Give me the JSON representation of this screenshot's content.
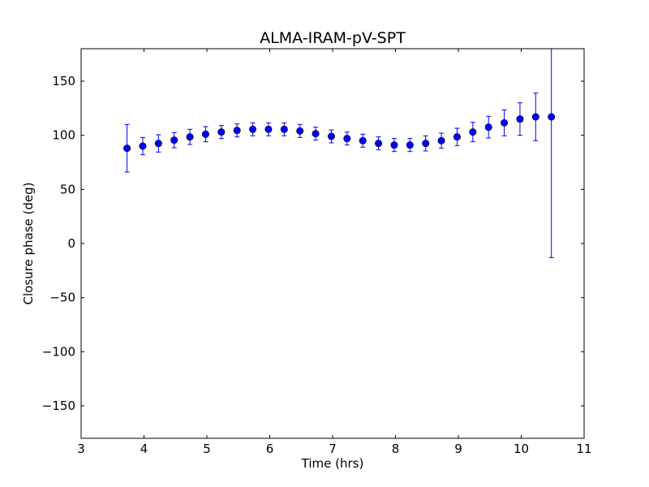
{
  "chart_data": {
    "type": "scatter",
    "title": "ALMA-IRAM-pV-SPT",
    "xlabel": "Time (hrs)",
    "ylabel": "Closure phase (deg)",
    "xlim": [
      3,
      11
    ],
    "ylim": [
      -180,
      180
    ],
    "xticks": [
      3,
      4,
      5,
      6,
      7,
      8,
      9,
      10,
      11
    ],
    "xtick_labels": [
      "3",
      "4",
      "5",
      "6",
      "7",
      "8",
      "9",
      "10",
      "11"
    ],
    "yticks": [
      -150,
      -100,
      -50,
      0,
      50,
      100,
      150
    ],
    "ytick_labels": [
      "−150",
      "−100",
      "−50",
      "0",
      "50",
      "100",
      "150"
    ],
    "grid": false,
    "color": "#0000ff",
    "series": [
      {
        "name": "ALMA-IRAM-pV-SPT",
        "points": [
          {
            "x": 3.73,
            "y": 88,
            "err": 22
          },
          {
            "x": 3.98,
            "y": 90,
            "err": 8
          },
          {
            "x": 4.23,
            "y": 92.5,
            "err": 8
          },
          {
            "x": 4.48,
            "y": 95.5,
            "err": 7
          },
          {
            "x": 4.73,
            "y": 98.5,
            "err": 7
          },
          {
            "x": 4.98,
            "y": 101,
            "err": 7
          },
          {
            "x": 5.23,
            "y": 103,
            "err": 6
          },
          {
            "x": 5.48,
            "y": 104.5,
            "err": 6
          },
          {
            "x": 5.73,
            "y": 105.5,
            "err": 6
          },
          {
            "x": 5.98,
            "y": 105.5,
            "err": 6
          },
          {
            "x": 6.23,
            "y": 105.5,
            "err": 6
          },
          {
            "x": 6.48,
            "y": 104,
            "err": 6
          },
          {
            "x": 6.73,
            "y": 101.5,
            "err": 6
          },
          {
            "x": 6.98,
            "y": 99,
            "err": 6
          },
          {
            "x": 7.23,
            "y": 97,
            "err": 6
          },
          {
            "x": 7.48,
            "y": 95,
            "err": 6
          },
          {
            "x": 7.73,
            "y": 92.5,
            "err": 6
          },
          {
            "x": 7.98,
            "y": 91,
            "err": 6
          },
          {
            "x": 8.23,
            "y": 91,
            "err": 6
          },
          {
            "x": 8.48,
            "y": 92.5,
            "err": 7
          },
          {
            "x": 8.73,
            "y": 95,
            "err": 7
          },
          {
            "x": 8.98,
            "y": 98.5,
            "err": 8
          },
          {
            "x": 9.23,
            "y": 103,
            "err": 9
          },
          {
            "x": 9.48,
            "y": 107.5,
            "err": 10
          },
          {
            "x": 9.73,
            "y": 111.5,
            "err": 12
          },
          {
            "x": 9.98,
            "y": 115,
            "err": 15
          },
          {
            "x": 10.23,
            "y": 117,
            "err": 22
          },
          {
            "x": 10.48,
            "y": 117,
            "err": 130
          }
        ]
      }
    ]
  }
}
